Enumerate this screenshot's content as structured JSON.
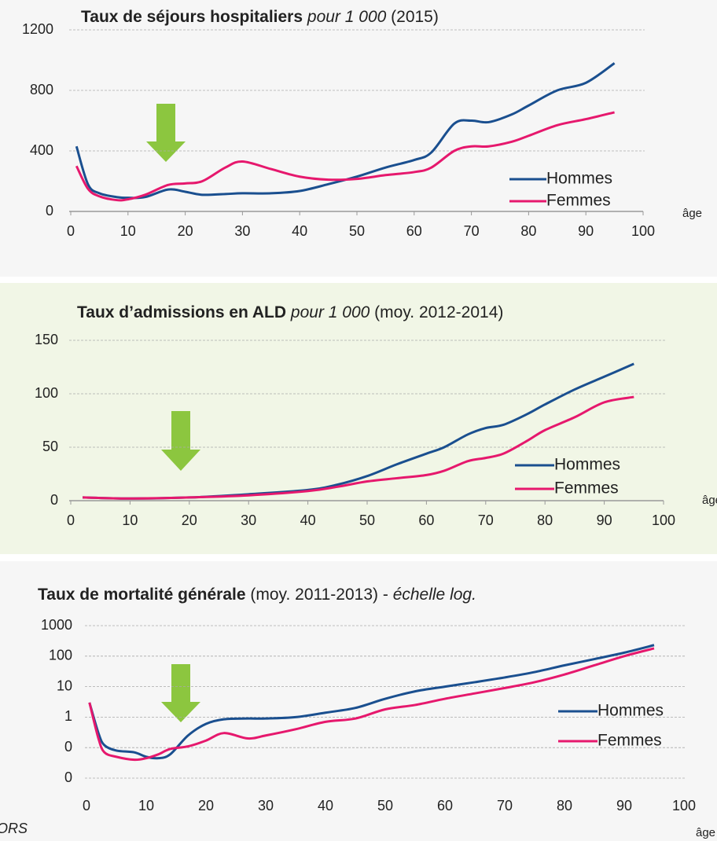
{
  "source": "ORS",
  "chart_data": [
    {
      "type": "line",
      "title": [
        {
          "text": "Taux de séjours hospitaliers",
          "style": "bold"
        },
        {
          "text": "pour 1 000",
          "style": "italic"
        },
        {
          "text": "(2015)",
          "style": "normal"
        }
      ],
      "x_label": "âge",
      "x": [
        1,
        3,
        5,
        8,
        10,
        13,
        17,
        20,
        23,
        27,
        30,
        35,
        40,
        45,
        50,
        55,
        60,
        63,
        67,
        70,
        73,
        77,
        80,
        85,
        90,
        95
      ],
      "xlim": [
        0,
        100
      ],
      "xticks": [
        0,
        10,
        20,
        30,
        40,
        50,
        60,
        70,
        80,
        90,
        100
      ],
      "ylim": [
        0,
        1200
      ],
      "yticks": [
        0,
        400,
        800,
        1200
      ],
      "grid": true,
      "legend": "lower right",
      "series": [
        {
          "name": "Hommes",
          "color": "#1a4f8f",
          "values": [
            430,
            180,
            120,
            95,
            90,
            95,
            145,
            130,
            110,
            115,
            120,
            120,
            135,
            180,
            230,
            290,
            340,
            390,
            580,
            600,
            590,
            640,
            700,
            800,
            850,
            980
          ]
        },
        {
          "name": "Femmes",
          "color": "#e6186d",
          "values": [
            300,
            150,
            100,
            75,
            80,
            110,
            175,
            185,
            200,
            290,
            330,
            280,
            230,
            210,
            215,
            240,
            260,
            290,
            400,
            430,
            430,
            460,
            500,
            570,
            610,
            655
          ]
        }
      ]
    },
    {
      "type": "line",
      "title": [
        {
          "text": "Taux d’admissions en ALD",
          "style": "bold"
        },
        {
          "text": "pour 1 000",
          "style": "italic"
        },
        {
          "text": "(moy. 2012-2014)",
          "style": "normal"
        }
      ],
      "x_label": "âge",
      "x": [
        2,
        10,
        20,
        30,
        40,
        45,
        50,
        55,
        60,
        63,
        67,
        70,
        73,
        77,
        80,
        85,
        90,
        95
      ],
      "xlim": [
        0,
        100
      ],
      "xticks": [
        0,
        10,
        20,
        30,
        40,
        50,
        60,
        70,
        80,
        90,
        100
      ],
      "ylim": [
        0,
        150
      ],
      "yticks": [
        0,
        50,
        100,
        150
      ],
      "grid": true,
      "legend": "lower right",
      "series": [
        {
          "name": "Hommes",
          "color": "#1a4f8f",
          "values": [
            3,
            2,
            3,
            6,
            10,
            15,
            23,
            34,
            44,
            50,
            62,
            68,
            71,
            81,
            90,
            104,
            116,
            128
          ]
        },
        {
          "name": "Femmes",
          "color": "#e6186d",
          "values": [
            3,
            2,
            3,
            5,
            9,
            13,
            18,
            21,
            24,
            28,
            37,
            40,
            44,
            56,
            66,
            78,
            92,
            97
          ]
        }
      ]
    },
    {
      "type": "line",
      "title": [
        {
          "text": "Taux de mortalité générale",
          "style": "bold"
        },
        {
          "text": "(moy. 2011-2013) -",
          "style": "normal"
        },
        {
          "text": "échelle log.",
          "style": "italic"
        }
      ],
      "x_label": "âge",
      "x": [
        0.5,
        2,
        3,
        5,
        8,
        10,
        12,
        14,
        17,
        20,
        23,
        27,
        30,
        35,
        40,
        45,
        50,
        55,
        60,
        65,
        70,
        75,
        80,
        85,
        90,
        95
      ],
      "xlim": [
        0,
        100
      ],
      "xticks": [
        0,
        10,
        20,
        30,
        40,
        50,
        60,
        70,
        80,
        90,
        100
      ],
      "ylim": [
        0.01,
        1000
      ],
      "log_scale": true,
      "yticks": [
        {
          "value": 0.01,
          "label": "0"
        },
        {
          "value": 0.1,
          "label": "0"
        },
        1,
        10,
        100,
        1000
      ],
      "grid": true,
      "legend": "lower right",
      "series": [
        {
          "name": "Hommes",
          "color": "#1a4f8f",
          "values": [
            3,
            0.3,
            0.12,
            0.08,
            0.07,
            0.05,
            0.045,
            0.06,
            0.25,
            0.6,
            0.85,
            0.9,
            0.9,
            1,
            1.4,
            2,
            4,
            7,
            10,
            14,
            20,
            30,
            50,
            80,
            130,
            230
          ]
        },
        {
          "name": "Femmes",
          "color": "#e6186d",
          "values": [
            3,
            0.2,
            0.07,
            0.05,
            0.04,
            0.045,
            0.06,
            0.09,
            0.11,
            0.17,
            0.3,
            0.2,
            0.25,
            0.4,
            0.7,
            0.9,
            1.8,
            2.5,
            4,
            6,
            9,
            14,
            25,
            50,
            100,
            180
          ]
        }
      ]
    }
  ]
}
